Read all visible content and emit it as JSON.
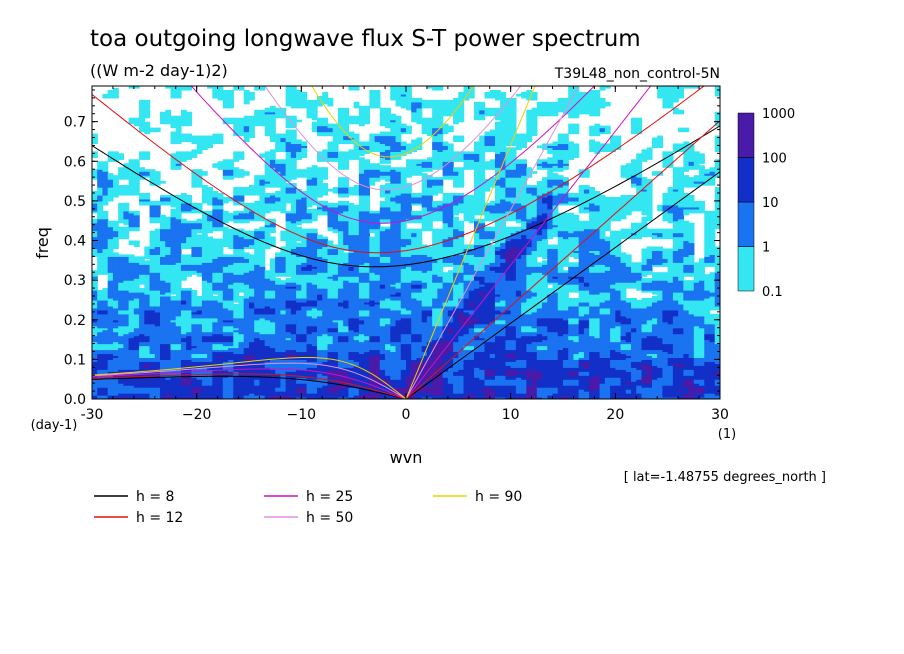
{
  "chart_data": {
    "type": "heatmap",
    "title": "toa outgoing longwave flux S-T power spectrum",
    "subtitle": "((W m-2 day-1)2)",
    "run_label": "T39L48_non_control-5N",
    "xlabel": "wvn",
    "ylabel": "freq",
    "x_unit": "(1)",
    "y_unit": "(day-1)",
    "xlim": [
      -30,
      30
    ],
    "ylim": [
      0,
      0.79
    ],
    "x_ticks": [
      -30,
      -20,
      -10,
      0,
      10,
      20,
      30
    ],
    "x_tick_labels": [
      "-30",
      "−20",
      "−10",
      "0",
      "10",
      "20",
      "30"
    ],
    "y_ticks": [
      0.0,
      0.1,
      0.2,
      0.3,
      0.4,
      0.5,
      0.6,
      0.7
    ],
    "y_tick_labels": [
      "0.0",
      "0.1",
      "0.2",
      "0.3",
      "0.4",
      "0.5",
      "0.6",
      "0.7"
    ],
    "annotation": "[ lat=-1.48755 degrees_north ]",
    "colorbar": {
      "levels": [
        0.1,
        1,
        10,
        100,
        1000
      ],
      "labels": [
        "0.1",
        "1",
        "10",
        "100",
        "1000"
      ],
      "colors": [
        "#33e6f2",
        "#1a73f0",
        "#1230c8",
        "#4a1aa8"
      ]
    },
    "dispersion_curves": [
      {
        "label": "h =  8",
        "h": 8,
        "color": "#000000"
      },
      {
        "label": "h = 12",
        "h": 12,
        "color": "#e01010"
      },
      {
        "label": "h = 25",
        "h": 25,
        "color": "#d010c8"
      },
      {
        "label": "h = 50",
        "h": 50,
        "color": "#e090e0"
      },
      {
        "label": "h = 90",
        "h": 90,
        "color": "#f0d000"
      }
    ]
  }
}
